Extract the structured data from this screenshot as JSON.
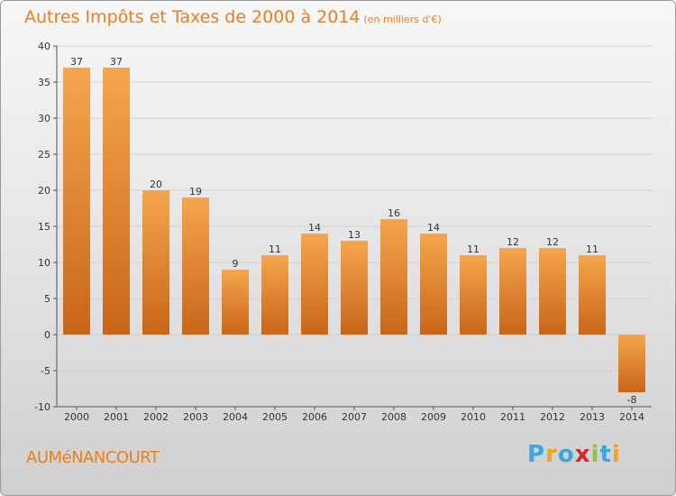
{
  "title": "Autres Impôts et Taxes de 2000 à 2014",
  "unit": "(en milliers d'€)",
  "town": "AUMéNANCOURT",
  "logo": {
    "text": "Proxiti",
    "letters": [
      "P",
      "r",
      "o",
      "x",
      "i",
      "t",
      "i"
    ],
    "colors": [
      "#3aa7e0",
      "#f5a31a",
      "#3aa7e0",
      "#d6262e",
      "#8dc63f",
      "#3aa7e0",
      "#f5a31a"
    ]
  },
  "colors": {
    "accent": "#e87e1f",
    "bar_light": "#f6a54e",
    "bar_dark": "#c8661a"
  },
  "chart_data": {
    "type": "bar",
    "title": "Autres Impôts et Taxes de 2000 à 2014",
    "ylabel": "",
    "xlabel": "",
    "ylim": [
      -10,
      40
    ],
    "yticks": [
      -10,
      -5,
      0,
      5,
      10,
      15,
      20,
      25,
      30,
      35,
      40
    ],
    "grid": true,
    "categories": [
      "2000",
      "2001",
      "2002",
      "2003",
      "2004",
      "2005",
      "2006",
      "2007",
      "2008",
      "2009",
      "2010",
      "2011",
      "2012",
      "2013",
      "2014"
    ],
    "values": [
      37,
      37,
      20,
      19,
      9,
      11,
      14,
      13,
      16,
      14,
      11,
      12,
      12,
      11,
      -8
    ]
  }
}
